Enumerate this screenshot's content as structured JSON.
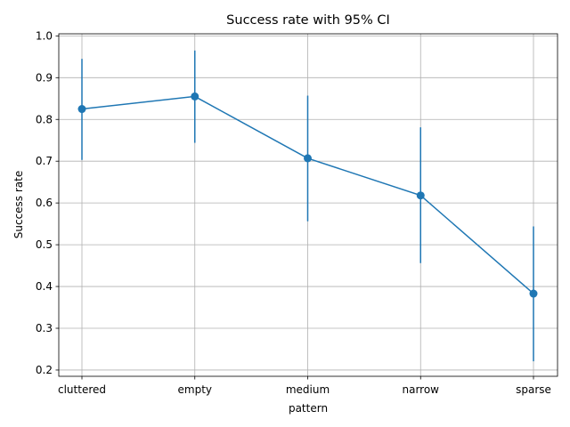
{
  "chart_data": {
    "type": "line",
    "title": "Success rate with 95% CI",
    "xlabel": "pattern",
    "ylabel": "Success rate",
    "categories": [
      "cluttered",
      "empty",
      "medium",
      "narrow",
      "sparse"
    ],
    "series": [
      {
        "values": [
          0.825,
          0.855,
          0.707,
          0.618,
          0.383
        ],
        "ci_low": [
          0.703,
          0.744,
          0.556,
          0.456,
          0.221
        ],
        "ci_high": [
          0.945,
          0.965,
          0.857,
          0.781,
          0.544
        ],
        "color": "#1f77b4"
      }
    ],
    "ylim": [
      0.185,
      1.005
    ],
    "yticks": [
      0.2,
      0.3,
      0.4,
      0.5,
      0.6,
      0.7,
      0.8,
      0.9,
      1.0
    ],
    "ytick_labels": [
      "0.2",
      "0.3",
      "0.4",
      "0.5",
      "0.6",
      "0.7",
      "0.8",
      "0.9",
      "1.0"
    ],
    "grid": true,
    "legend": "none"
  }
}
